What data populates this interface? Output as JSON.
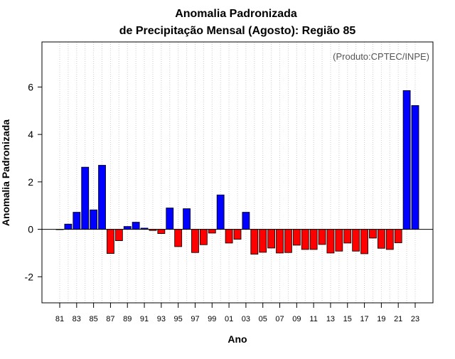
{
  "chart_data": {
    "type": "bar",
    "title": "Anomalia Padronizada",
    "subtitle": "de Precipitação Mensal (Agosto): Região 85",
    "xlabel": "Ano",
    "ylabel": "Anomalia Padronizada",
    "annotation": "(Produto:CPTEC/INPE)",
    "ylim": [
      -3.1,
      7.9
    ],
    "yticks": [
      -2,
      0,
      2,
      4,
      6
    ],
    "ytick_labels": [
      "-2",
      "0",
      "2",
      "4",
      "6"
    ],
    "categories": [
      "1981",
      "1982",
      "1983",
      "1984",
      "1985",
      "1986",
      "1987",
      "1988",
      "1989",
      "1990",
      "1991",
      "1992",
      "1993",
      "1994",
      "1995",
      "1996",
      "1997",
      "1998",
      "1999",
      "2000",
      "2001",
      "2002",
      "2003",
      "2004",
      "2005",
      "2006",
      "2007",
      "2008",
      "2009",
      "2010",
      "2011",
      "2012",
      "2013",
      "2014",
      "2015",
      "2016",
      "2017",
      "2018",
      "2019",
      "2020",
      "2021",
      "2022",
      "2023"
    ],
    "xtick_labels": [
      "81",
      "83",
      "85",
      "87",
      "89",
      "91",
      "93",
      "95",
      "97",
      "99",
      "01",
      "03",
      "05",
      "07",
      "09",
      "11",
      "13",
      "15",
      "17",
      "19",
      "21",
      "23"
    ],
    "xtick_positions": [
      "1981",
      "1983",
      "1985",
      "1987",
      "1989",
      "1991",
      "1993",
      "1995",
      "1997",
      "1999",
      "2001",
      "2003",
      "2005",
      "2007",
      "2009",
      "2011",
      "2013",
      "2015",
      "2017",
      "2019",
      "2021",
      "2023"
    ],
    "values": [
      0.0,
      0.22,
      0.72,
      2.62,
      0.82,
      2.7,
      -1.02,
      -0.48,
      0.12,
      0.3,
      0.05,
      -0.05,
      -0.18,
      0.9,
      -0.73,
      0.87,
      -0.98,
      -0.65,
      -0.16,
      1.45,
      -0.58,
      -0.42,
      0.72,
      -1.05,
      -0.97,
      -0.79,
      -1.0,
      -0.98,
      -0.67,
      -0.85,
      -0.85,
      -0.64,
      -1.0,
      -0.92,
      -0.58,
      -0.92,
      -1.03,
      -0.37,
      -0.8,
      -0.85,
      -0.57,
      5.85,
      5.22
    ],
    "grid": "vertical dotted",
    "colors": {
      "positive": "#0000ff",
      "negative": "#ff0000",
      "zero_line": "#000000",
      "grid": "#cccccc"
    }
  }
}
